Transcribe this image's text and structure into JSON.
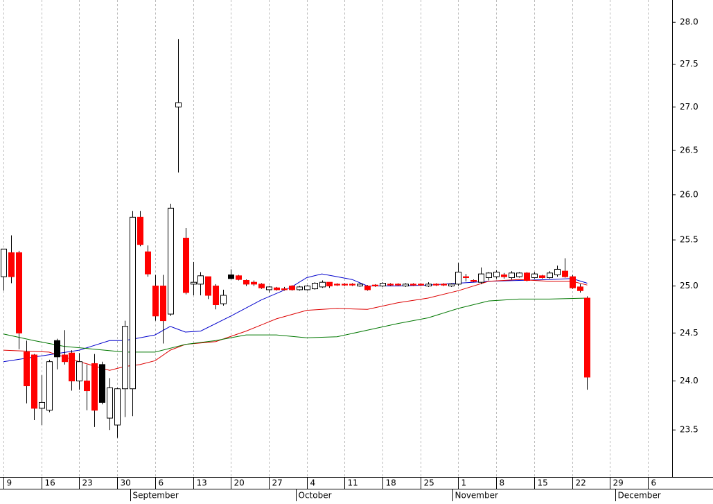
{
  "chart_data": {
    "type": "candlestick",
    "log": true,
    "grid": true,
    "xlim": [
      -0.46,
      88.2
    ],
    "ylim": [
      23.03,
      28.27
    ],
    "yticks": [
      23.5,
      {
        "value": 24.0,
        "label": "24.0"
      },
      24.5,
      {
        "value": 25.0,
        "label": "25.0"
      },
      25.5,
      {
        "value": 26.0,
        "label": "26.0"
      },
      26.5,
      {
        "value": 27.0,
        "label": "27.0"
      },
      27.5,
      {
        "value": 28.0,
        "label": "28.0"
      }
    ],
    "xticks": [
      {
        "value": 0,
        "label": "9"
      },
      {
        "value": 5,
        "label": "16"
      },
      {
        "value": 10,
        "label": "23"
      },
      {
        "value": 15,
        "label": "30"
      },
      {
        "value": 20,
        "label": "6"
      },
      {
        "value": 25,
        "label": "13"
      },
      {
        "value": 30,
        "label": "20"
      },
      {
        "value": 35,
        "label": "27"
      },
      {
        "value": 40,
        "label": "4"
      },
      {
        "value": 45,
        "label": "11"
      },
      {
        "value": 50,
        "label": "18"
      },
      {
        "value": 55,
        "label": "25"
      },
      {
        "value": 60,
        "label": "1"
      },
      {
        "value": 65,
        "label": "8"
      },
      {
        "value": 70,
        "label": "15"
      },
      {
        "value": 75,
        "label": "22"
      },
      {
        "value": 80,
        "label": "29"
      },
      {
        "value": 85,
        "label": "6"
      }
    ],
    "month_ticks": [
      {
        "value": 16.7,
        "label": "September"
      },
      {
        "value": 38.6,
        "label": "October"
      },
      {
        "value": 59.2,
        "label": "November"
      },
      {
        "value": 80.7,
        "label": "December"
      }
    ],
    "candles": {
      "open": [
        25.1,
        25.36,
        25.36,
        24.3,
        24.27,
        23.72,
        23.7,
        24.42,
        24.27,
        24.29,
        24.0,
        24.0,
        24.18,
        24.17,
        23.62,
        23.55,
        23.92,
        23.92,
        25.75,
        25.37,
        25.0,
        25.0,
        24.7,
        27.0,
        25.52,
        25.02,
        25.02,
        25.1,
        25.0,
        24.81,
        25.12,
        25.11,
        25.06,
        25.04,
        25.02,
        24.96,
        24.98,
        24.97,
        25.0,
        24.96,
        24.96,
        24.97,
        24.99,
        25.04,
        25.02,
        25.02,
        25.02,
        25.0,
        25.0,
        25.01,
        25.0,
        25.02,
        25.02,
        25.0,
        25.02,
        25.02,
        25.0,
        25.02,
        25.02,
        25.0,
        25.02,
        25.1,
        25.06,
        25.04,
        25.09,
        25.1,
        25.12,
        25.09,
        25.1,
        25.14,
        25.09,
        25.11,
        25.09,
        25.12,
        25.16,
        25.1,
        24.99,
        24.87
      ],
      "high": [
        25.4,
        25.55,
        25.38,
        24.42,
        24.28,
        24.06,
        24.22,
        24.44,
        24.53,
        24.32,
        24.29,
        24.17,
        24.28,
        24.2,
        24.03,
        23.93,
        24.63,
        25.82,
        25.82,
        25.44,
        25.12,
        25.12,
        25.9,
        27.8,
        25.63,
        25.26,
        25.15,
        25.1,
        25.02,
        24.96,
        25.18,
        25.12,
        25.07,
        25.06,
        25.03,
        25.0,
        24.99,
        24.99,
        25.01,
        25.0,
        25.01,
        25.04,
        25.06,
        25.04,
        25.03,
        25.03,
        25.03,
        25.03,
        25.01,
        25.02,
        25.04,
        25.03,
        25.03,
        25.03,
        25.03,
        25.03,
        25.04,
        25.03,
        25.03,
        25.03,
        25.25,
        25.13,
        25.07,
        25.2,
        25.15,
        25.17,
        25.14,
        25.16,
        25.15,
        25.15,
        25.15,
        25.12,
        25.16,
        25.22,
        25.3,
        25.12,
        25.02,
        24.89
      ],
      "low": [
        24.95,
        25.03,
        24.33,
        23.77,
        23.6,
        23.55,
        23.68,
        24.12,
        24.17,
        23.9,
        23.91,
        23.7,
        23.53,
        23.76,
        23.5,
        23.42,
        23.63,
        23.64,
        25.43,
        25.1,
        24.63,
        24.39,
        24.68,
        26.25,
        24.91,
        24.9,
        24.9,
        24.86,
        24.75,
        24.79,
        25.07,
        25.06,
        25.0,
        25.0,
        24.97,
        24.93,
        24.95,
        24.95,
        24.95,
        24.95,
        24.95,
        24.96,
        24.98,
        24.98,
        25.0,
        25.0,
        25.0,
        24.99,
        24.95,
        24.99,
        24.99,
        25.0,
        25.0,
        24.99,
        25.0,
        25.0,
        24.99,
        25.0,
        25.0,
        24.99,
        25.0,
        25.05,
        25.04,
        25.02,
        25.06,
        25.08,
        25.08,
        25.07,
        25.09,
        25.05,
        25.08,
        25.08,
        25.08,
        25.1,
        25.09,
        24.97,
        24.93,
        23.91
      ],
      "close": [
        25.4,
        25.1,
        24.5,
        23.95,
        23.72,
        23.78,
        24.2,
        24.25,
        24.2,
        24.0,
        24.2,
        23.9,
        23.7,
        23.78,
        23.93,
        23.92,
        24.57,
        25.75,
        25.45,
        25.13,
        24.68,
        24.63,
        25.85,
        27.05,
        24.93,
        25.04,
        25.11,
        24.9,
        24.8,
        24.9,
        25.08,
        25.07,
        25.02,
        25.02,
        24.98,
        24.99,
        24.96,
        24.96,
        24.96,
        24.99,
        25.0,
        25.03,
        25.04,
        25.0,
        25.01,
        25.01,
        25.01,
        25.02,
        24.96,
        25.0,
        25.03,
        25.01,
        25.01,
        25.02,
        25.01,
        25.01,
        25.02,
        25.01,
        25.01,
        25.02,
        25.15,
        25.09,
        25.05,
        25.13,
        25.14,
        25.15,
        25.1,
        25.14,
        25.14,
        25.06,
        25.13,
        25.09,
        25.14,
        25.18,
        25.1,
        24.98,
        24.95,
        24.04
      ],
      "colors": [
        "#ffffff",
        "#ff0000",
        "#ff0000",
        "#ff0000",
        "#ff0000",
        "#ffffff",
        "#ffffff",
        "#000000",
        "#ff0000",
        "#ff0000",
        "#ffffff",
        "#ff0000",
        "#ff0000",
        "#000000",
        "#ffffff",
        "#ffffff",
        "#ffffff",
        "#ffffff",
        "#ff0000",
        "#ff0000",
        "#ff0000",
        "#ff0000",
        "#ffffff",
        "#ffffff",
        "#ff0000",
        "#ffffff",
        "#ffffff",
        "#ff0000",
        "#ff0000",
        "#ffffff",
        "#000000",
        "#ff0000",
        "#ff0000",
        "#ff0000",
        "#ff0000",
        "#ffffff",
        "#ff0000",
        "#ff0000",
        "#ff0000",
        "#ffffff",
        "#ffffff",
        "#ffffff",
        "#ffffff",
        "#ff0000",
        "#ff0000",
        "#ff0000",
        "#ff0000",
        "#ffffff",
        "#ff0000",
        "#ff0000",
        "#ffffff",
        "#ff0000",
        "#ff0000",
        "#ffffff",
        "#ff0000",
        "#ff0000",
        "#ffffff",
        "#ff0000",
        "#ff0000",
        "#ffffff",
        "#ffffff",
        "#ff0000",
        "#ff0000",
        "#ffffff",
        "#ffffff",
        "#ffffff",
        "#ff0000",
        "#ffffff",
        "#ffffff",
        "#ff0000",
        "#ffffff",
        "#ff0000",
        "#ffffff",
        "#ffffff",
        "#ff0000",
        "#ff0000",
        "#ff0000",
        "#ff0000"
      ]
    },
    "lines": [
      {
        "color": "#0000cc",
        "x": [
          0,
          10,
          14,
          16,
          18,
          20,
          22,
          24,
          26,
          30,
          34,
          38,
          40,
          42,
          44,
          46,
          48,
          52,
          56,
          60,
          64,
          68,
          72,
          75,
          77
        ],
        "values": [
          24.2,
          24.32,
          24.42,
          24.42,
          24.45,
          24.48,
          24.57,
          24.51,
          24.52,
          24.68,
          24.85,
          24.99,
          25.09,
          25.13,
          25.1,
          25.07,
          25.0,
          25.0,
          25.01,
          25.03,
          25.05,
          25.06,
          25.07,
          25.08,
          25.03
        ]
      },
      {
        "color": "#dd0000",
        "x": [
          0,
          6,
          10,
          14,
          16,
          18,
          20,
          22,
          24,
          28,
          32,
          36,
          40,
          44,
          48,
          52,
          56,
          60,
          64,
          68,
          72,
          75,
          77
        ],
        "values": [
          24.32,
          24.3,
          24.2,
          24.11,
          24.15,
          24.17,
          24.21,
          24.32,
          24.38,
          24.41,
          24.52,
          24.65,
          24.74,
          24.76,
          24.75,
          24.82,
          24.87,
          24.95,
          25.05,
          25.07,
          25.05,
          25.05,
          25.01
        ]
      },
      {
        "color": "#007700",
        "x": [
          0,
          4,
          8,
          12,
          16,
          20,
          24,
          28,
          32,
          36,
          40,
          44,
          48,
          52,
          56,
          60,
          64,
          68,
          72,
          77
        ],
        "values": [
          24.49,
          24.42,
          24.36,
          24.33,
          24.3,
          24.3,
          24.38,
          24.42,
          24.48,
          24.48,
          24.45,
          24.46,
          24.53,
          24.6,
          24.66,
          24.76,
          24.84,
          24.86,
          24.86,
          24.87
        ]
      }
    ]
  }
}
